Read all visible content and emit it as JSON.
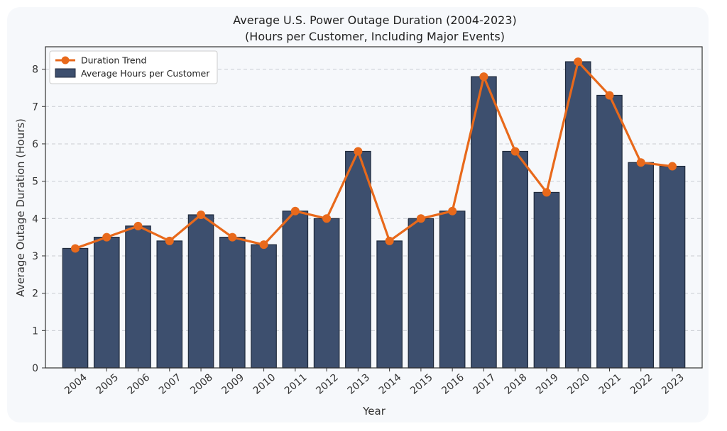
{
  "chart_data": {
    "type": "bar",
    "title": "Average U.S. Power Outage Duration (2004-2023)",
    "subtitle": "(Hours per Customer, Including Major Events)",
    "xlabel": "Year",
    "ylabel": "Average Outage Duration (Hours)",
    "categories": [
      "2004",
      "2005",
      "2006",
      "2007",
      "2008",
      "2009",
      "2010",
      "2011",
      "2012",
      "2013",
      "2014",
      "2015",
      "2016",
      "2017",
      "2018",
      "2019",
      "2020",
      "2021",
      "2022",
      "2023"
    ],
    "series": [
      {
        "name": "Average Hours per Customer",
        "type": "bar",
        "color": "#3d4f6e",
        "values": [
          3.2,
          3.5,
          3.8,
          3.4,
          4.1,
          3.5,
          3.3,
          4.2,
          4.0,
          5.8,
          3.4,
          4.0,
          4.2,
          7.8,
          5.8,
          4.7,
          8.2,
          7.3,
          5.5,
          5.4
        ]
      },
      {
        "name": "Duration Trend",
        "type": "line",
        "color": "#e8691b",
        "values": [
          3.2,
          3.5,
          3.8,
          3.4,
          4.1,
          3.5,
          3.3,
          4.2,
          4.0,
          5.8,
          3.4,
          4.0,
          4.2,
          7.8,
          5.8,
          4.7,
          8.2,
          7.3,
          5.5,
          5.4
        ]
      }
    ],
    "ylim": [
      0,
      8.6
    ],
    "yticks": [
      0,
      1,
      2,
      3,
      4,
      5,
      6,
      7,
      8
    ],
    "grid": true,
    "legend_position": "top-left"
  }
}
